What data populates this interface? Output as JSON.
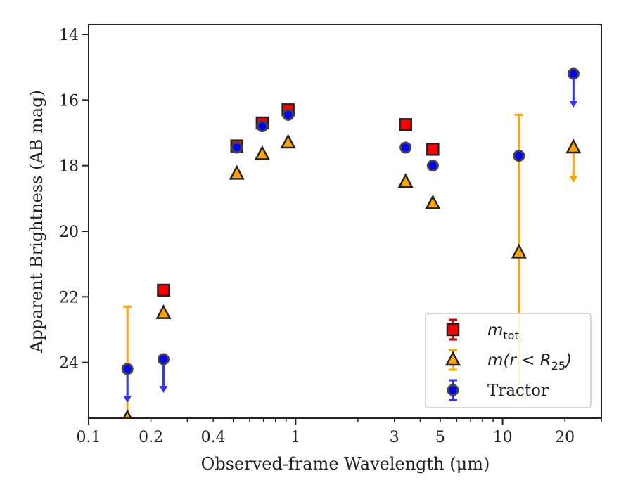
{
  "chart_data": {
    "type": "scatter",
    "title": "",
    "xlabel": "Observed-frame Wavelength (μm)",
    "ylabel": "Apparent Brightness (AB mag)",
    "xscale": "log",
    "xlim": [
      0.1,
      30
    ],
    "ylim": [
      25.7,
      13.7
    ],
    "y_inverted": true,
    "xticks": [
      {
        "value": 0.1,
        "label": "0.1"
      },
      {
        "value": 0.2,
        "label": "0.2"
      },
      {
        "value": 0.4,
        "label": "0.4"
      },
      {
        "value": 1,
        "label": "1"
      },
      {
        "value": 3,
        "label": "3"
      },
      {
        "value": 5,
        "label": "5"
      },
      {
        "value": 10,
        "label": "10"
      },
      {
        "value": 20,
        "label": "20"
      }
    ],
    "yticks": [
      {
        "value": 14,
        "label": "14"
      },
      {
        "value": 16,
        "label": "16"
      },
      {
        "value": 18,
        "label": "18"
      },
      {
        "value": 20,
        "label": "20"
      },
      {
        "value": 22,
        "label": "22"
      },
      {
        "value": 24,
        "label": "24"
      }
    ],
    "legend": {
      "placement": "lower-right"
    },
    "series": [
      {
        "name": "m_tot",
        "label_base": "m",
        "label_sub": "tot",
        "marker": "square",
        "color": "#ff0000",
        "errcolor": "#cc0000",
        "points": [
          {
            "x": 0.23,
            "y": 21.8
          },
          {
            "x": 0.52,
            "y": 17.4
          },
          {
            "x": 0.69,
            "y": 16.7
          },
          {
            "x": 0.92,
            "y": 16.3
          },
          {
            "x": 3.4,
            "y": 16.75
          },
          {
            "x": 4.6,
            "y": 17.5
          }
        ]
      },
      {
        "name": "m(r<R_25)",
        "label_base": "m(r < R",
        "label_sub": "25",
        "label_tail": ")",
        "marker": "triangle",
        "color": "#ffa500",
        "errcolor": "#ffa500",
        "points": [
          {
            "x": 0.154,
            "y": 25.7,
            "yerr_low": 22.3,
            "yerr_high": 25.7
          },
          {
            "x": 0.23,
            "y": 22.5
          },
          {
            "x": 0.52,
            "y": 18.25
          },
          {
            "x": 0.69,
            "y": 17.65
          },
          {
            "x": 0.92,
            "y": 17.3
          },
          {
            "x": 3.4,
            "y": 18.5
          },
          {
            "x": 4.6,
            "y": 19.15
          },
          {
            "x": 12.0,
            "y": 20.65,
            "yerr_low": 16.45,
            "yerr_high": 25.0
          },
          {
            "x": 22.0,
            "y": 17.45,
            "upper_limit": true
          }
        ]
      },
      {
        "name": "Tractor",
        "marker": "circle",
        "color": "#0000ff",
        "errcolor": "#3333ff",
        "points": [
          {
            "x": 0.154,
            "y": 24.2,
            "upper_limit": true
          },
          {
            "x": 0.23,
            "y": 23.9,
            "upper_limit": true
          },
          {
            "x": 0.52,
            "y": 17.45
          },
          {
            "x": 0.69,
            "y": 16.8
          },
          {
            "x": 0.92,
            "y": 16.45
          },
          {
            "x": 3.4,
            "y": 17.45
          },
          {
            "x": 4.6,
            "y": 18.0
          },
          {
            "x": 12.0,
            "y": 17.7
          },
          {
            "x": 22.0,
            "y": 15.2,
            "upper_limit": true
          }
        ]
      }
    ]
  }
}
